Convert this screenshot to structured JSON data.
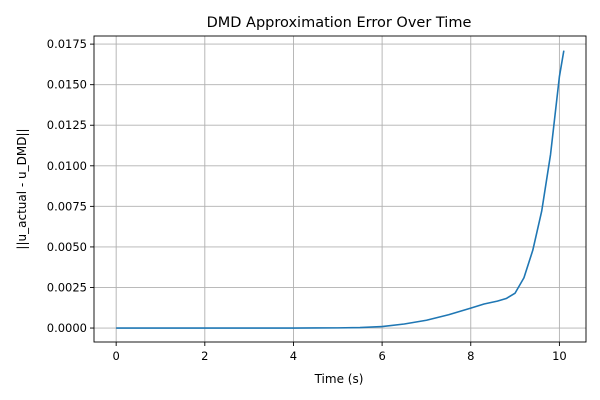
{
  "chart_data": {
    "type": "line",
    "title": "DMD Approximation Error Over Time",
    "xlabel": "Time (s)",
    "ylabel": "||u_actual - u_DMD||",
    "xlim": [
      -0.5,
      10.6
    ],
    "ylim": [
      -0.00086,
      0.018
    ],
    "xticks": [
      0,
      2,
      4,
      6,
      8,
      10
    ],
    "xtick_labels": [
      "0",
      "2",
      "4",
      "6",
      "8",
      "10"
    ],
    "yticks": [
      0.0,
      0.0025,
      0.005,
      0.0075,
      0.01,
      0.0125,
      0.015,
      0.0175
    ],
    "ytick_labels": [
      "0.0000",
      "0.0025",
      "0.0050",
      "0.0075",
      "0.0100",
      "0.0125",
      "0.0150",
      "0.0175"
    ],
    "grid": true,
    "series": [
      {
        "color": "#1f77b4",
        "x": [
          0,
          1,
          2,
          3,
          4,
          4.5,
          5,
          5.5,
          6,
          6.5,
          7,
          7.5,
          8,
          8.3,
          8.6,
          8.8,
          9.0,
          9.2,
          9.4,
          9.6,
          9.8,
          10.0,
          10.1
        ],
        "y": [
          0,
          0,
          0,
          0,
          0,
          5e-06,
          1e-05,
          3e-05,
          9e-05,
          0.00025,
          0.00048,
          0.00082,
          0.00123,
          0.00148,
          0.00166,
          0.00182,
          0.00215,
          0.0031,
          0.0048,
          0.0072,
          0.0107,
          0.0155,
          0.0171
        ]
      }
    ]
  }
}
